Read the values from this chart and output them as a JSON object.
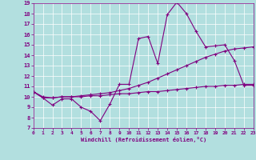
{
  "xlabel": "Windchill (Refroidissement éolien,°C)",
  "bg_color": "#b2dfdf",
  "line_color": "#800080",
  "xlim": [
    0,
    23
  ],
  "ylim": [
    7,
    19
  ],
  "xticks": [
    0,
    1,
    2,
    3,
    4,
    5,
    6,
    7,
    8,
    9,
    10,
    11,
    12,
    13,
    14,
    15,
    16,
    17,
    18,
    19,
    20,
    21,
    22,
    23
  ],
  "yticks": [
    7,
    8,
    9,
    10,
    11,
    12,
    13,
    14,
    15,
    16,
    17,
    18,
    19
  ],
  "curve1_x": [
    0,
    1,
    2,
    3,
    4,
    5,
    6,
    7,
    8,
    9,
    10,
    11,
    12,
    13,
    14,
    15,
    16,
    17,
    18,
    19,
    20,
    21,
    22,
    23
  ],
  "curve1_y": [
    10.5,
    9.9,
    9.2,
    9.8,
    9.8,
    9.0,
    8.6,
    7.7,
    9.3,
    11.2,
    11.2,
    15.6,
    15.8,
    13.2,
    17.9,
    19.1,
    18.0,
    16.3,
    14.8,
    14.9,
    15.0,
    13.5,
    11.1,
    11.1
  ],
  "curve2_x": [
    0,
    1,
    2,
    3,
    4,
    5,
    6,
    7,
    8,
    9,
    10,
    11,
    12,
    13,
    14,
    15,
    16,
    17,
    18,
    19,
    20,
    21,
    22,
    23
  ],
  "curve2_y": [
    10.5,
    10.0,
    9.9,
    10.0,
    10.0,
    10.1,
    10.2,
    10.3,
    10.4,
    10.6,
    10.8,
    11.1,
    11.4,
    11.8,
    12.2,
    12.6,
    13.0,
    13.4,
    13.8,
    14.1,
    14.4,
    14.6,
    14.7,
    14.8
  ],
  "curve3_x": [
    0,
    1,
    2,
    3,
    4,
    5,
    6,
    7,
    8,
    9,
    10,
    11,
    12,
    13,
    14,
    15,
    16,
    17,
    18,
    19,
    20,
    21,
    22,
    23
  ],
  "curve3_y": [
    10.5,
    9.9,
    9.9,
    10.0,
    10.0,
    10.0,
    10.1,
    10.1,
    10.2,
    10.3,
    10.3,
    10.4,
    10.5,
    10.5,
    10.6,
    10.7,
    10.8,
    10.9,
    11.0,
    11.0,
    11.1,
    11.1,
    11.2,
    11.2
  ]
}
